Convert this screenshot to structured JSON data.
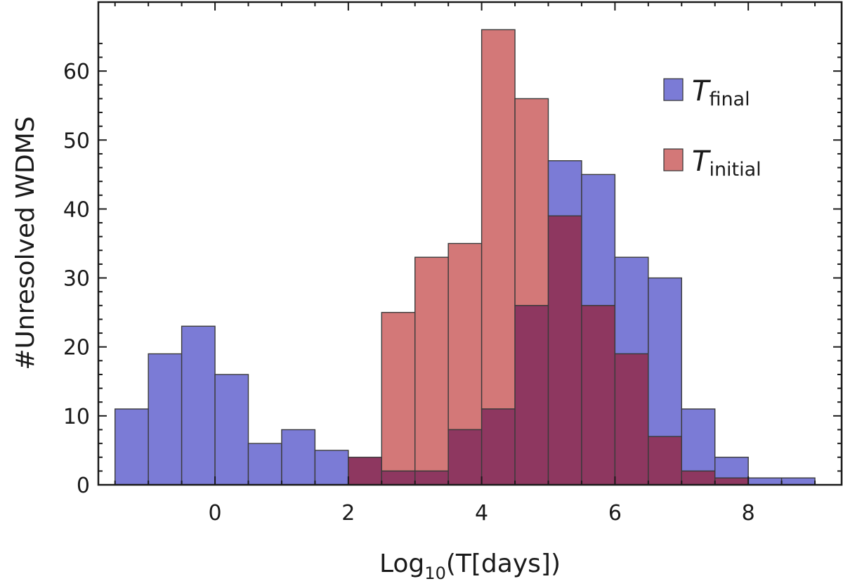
{
  "chart_data": {
    "type": "bar",
    "histogram": true,
    "bin_width": 0.5,
    "bin_starts": [
      -1.5,
      -1.0,
      -0.5,
      0.0,
      0.5,
      1.0,
      1.5,
      2.0,
      2.5,
      3.0,
      3.5,
      4.0,
      4.5,
      5.0,
      5.5,
      6.0,
      6.5,
      7.0,
      7.5,
      8.0,
      8.5
    ],
    "series": [
      {
        "name": "T_final",
        "label_main": "T",
        "label_sub": "final",
        "color": "#7b7bd6",
        "overlap_color": "#8e3760",
        "values": [
          11,
          19,
          23,
          16,
          6,
          8,
          5,
          4,
          2,
          2,
          8,
          11,
          26,
          47,
          45,
          33,
          30,
          11,
          4,
          1,
          1
        ]
      },
      {
        "name": "T_initial",
        "label_main": "T",
        "label_sub": "initial",
        "color": "#d37878",
        "values": [
          0,
          0,
          0,
          0,
          0,
          0,
          0,
          4,
          25,
          33,
          35,
          66,
          56,
          39,
          26,
          19,
          7,
          2,
          1,
          0,
          0
        ]
      }
    ],
    "xlabel_main": "Log",
    "xlabel_sub": "10",
    "xlabel_tail": "(T[days])",
    "ylabel": "#Unresolved WDMS",
    "xlim": [
      -1.75,
      9.4
    ],
    "ylim": [
      0,
      70
    ],
    "xticks": [
      0,
      2,
      4,
      6,
      8
    ],
    "yticks": [
      0,
      10,
      20,
      30,
      40,
      50,
      60
    ],
    "grid": false,
    "legend_position": "top-right"
  }
}
